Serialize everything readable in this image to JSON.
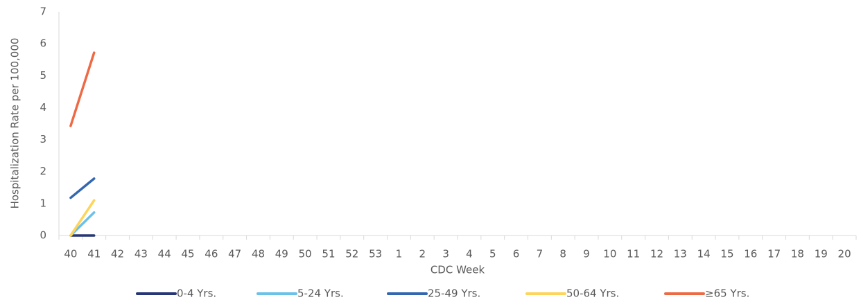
{
  "chart_data": {
    "type": "line",
    "y_label": "Hospitalization Rate per 100,000",
    "x_label": "CDC Week",
    "categories": [
      "40",
      "41",
      "42",
      "43",
      "44",
      "45",
      "46",
      "47",
      "48",
      "49",
      "50",
      "51",
      "52",
      "53",
      "1",
      "2",
      "3",
      "4",
      "5",
      "6",
      "7",
      "8",
      "9",
      "10",
      "11",
      "12",
      "13",
      "14",
      "15",
      "16",
      "17",
      "18",
      "19",
      "20"
    ],
    "ylim": [
      0,
      7
    ],
    "yticks": [
      0,
      1,
      2,
      3,
      4,
      5,
      6,
      7
    ],
    "grid": false,
    "legend": "bottom",
    "series": [
      {
        "name": "0-4 Yrs.",
        "color": "#263677",
        "values": [
          0,
          0,
          null,
          null,
          null,
          null,
          null,
          null,
          null,
          null,
          null,
          null,
          null,
          null,
          null,
          null,
          null,
          null,
          null,
          null,
          null,
          null,
          null,
          null,
          null,
          null,
          null,
          null,
          null,
          null,
          null,
          null,
          null,
          null
        ]
      },
      {
        "name": "5-24 Yrs.",
        "color": "#6bc1e8",
        "values": [
          0,
          0.72,
          null,
          null,
          null,
          null,
          null,
          null,
          null,
          null,
          null,
          null,
          null,
          null,
          null,
          null,
          null,
          null,
          null,
          null,
          null,
          null,
          null,
          null,
          null,
          null,
          null,
          null,
          null,
          null,
          null,
          null,
          null,
          null
        ]
      },
      {
        "name": "25-49 Yrs.",
        "color": "#3467b0",
        "values": [
          1.18,
          1.78,
          null,
          null,
          null,
          null,
          null,
          null,
          null,
          null,
          null,
          null,
          null,
          null,
          null,
          null,
          null,
          null,
          null,
          null,
          null,
          null,
          null,
          null,
          null,
          null,
          null,
          null,
          null,
          null,
          null,
          null,
          null,
          null
        ]
      },
      {
        "name": "50-64 Yrs.",
        "color": "#fed45a",
        "values": [
          0,
          1.1,
          null,
          null,
          null,
          null,
          null,
          null,
          null,
          null,
          null,
          null,
          null,
          null,
          null,
          null,
          null,
          null,
          null,
          null,
          null,
          null,
          null,
          null,
          null,
          null,
          null,
          null,
          null,
          null,
          null,
          null,
          null,
          null
        ]
      },
      {
        "name": "≥65 Yrs.",
        "color": "#ee6a45",
        "values": [
          3.43,
          5.72,
          null,
          null,
          null,
          null,
          null,
          null,
          null,
          null,
          null,
          null,
          null,
          null,
          null,
          null,
          null,
          null,
          null,
          null,
          null,
          null,
          null,
          null,
          null,
          null,
          null,
          null,
          null,
          null,
          null,
          null,
          null,
          null
        ]
      }
    ]
  }
}
